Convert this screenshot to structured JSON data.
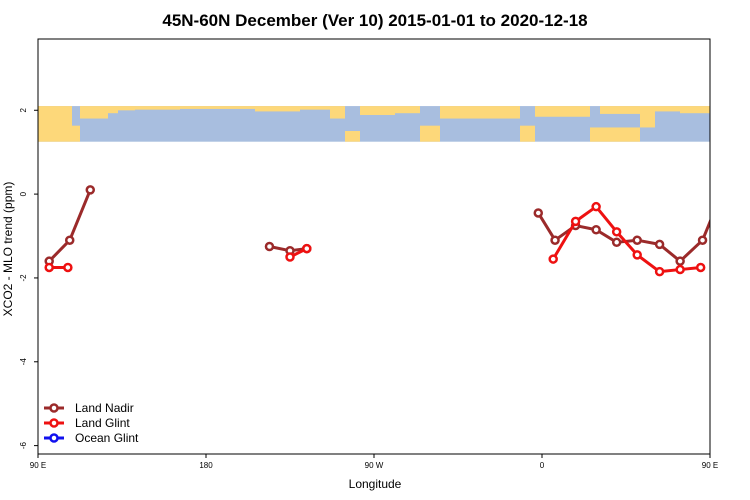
{
  "chart_data": {
    "type": "line",
    "title": "45N-60N December (Ver 10)   2015-01-01 to 2020-12-18",
    "xlabel": "Longitude",
    "ylabel": "XCO2 - MLO trend (ppm)",
    "xlim": [
      90,
      450
    ],
    "ylim": [
      -6.2,
      3.7
    ],
    "x_ticks": [
      {
        "value": 90,
        "label": "90 E"
      },
      {
        "value": 180,
        "label": "180"
      },
      {
        "value": 270,
        "label": "90 W"
      },
      {
        "value": 360,
        "label": "0"
      },
      {
        "value": 450,
        "label": "90 E"
      }
    ],
    "y_ticks": [
      {
        "value": -6,
        "label": "-6"
      },
      {
        "value": -4,
        "label": "-4"
      },
      {
        "value": -2,
        "label": "-2"
      },
      {
        "value": 0,
        "label": "0"
      },
      {
        "value": 2,
        "label": "2"
      }
    ],
    "map_band": {
      "y_top": 2.1,
      "y_bottom": 1.25,
      "ocean_color": "#a8bedf",
      "land_color": "#fdd87a"
    },
    "legend_position": "bottom-left",
    "series": [
      {
        "name": "Land Nadir",
        "color": "#9b2a2a",
        "segments": [
          [
            [
              96,
              -1.6
            ],
            [
              107,
              -1.1
            ],
            [
              118,
              0.1
            ]
          ],
          [
            [
              214,
              -1.25
            ],
            [
              225,
              -1.35
            ],
            [
              234,
              -1.3
            ]
          ],
          [
            [
              358,
              -0.45
            ],
            [
              367,
              -1.1
            ],
            [
              378,
              -0.75
            ],
            [
              389,
              -0.85
            ],
            [
              400,
              -1.15
            ],
            [
              411,
              -1.1
            ],
            [
              423,
              -1.2
            ],
            [
              434,
              -1.6
            ],
            [
              446,
              -1.1
            ],
            [
              457,
              0.1
            ]
          ]
        ]
      },
      {
        "name": "Land Glint",
        "color": "#ee1111",
        "segments": [
          [
            [
              96,
              -1.75
            ],
            [
              106,
              -1.75
            ]
          ],
          [
            [
              225,
              -1.5
            ],
            [
              234,
              -1.3
            ]
          ],
          [
            [
              366,
              -1.55
            ],
            [
              378,
              -0.65
            ],
            [
              389,
              -0.3
            ],
            [
              400,
              -0.9
            ],
            [
              411,
              -1.45
            ],
            [
              423,
              -1.85
            ],
            [
              434,
              -1.8
            ],
            [
              445,
              -1.75
            ]
          ]
        ]
      },
      {
        "name": "Ocean Glint",
        "color": "#1111ee",
        "segments": []
      }
    ]
  }
}
